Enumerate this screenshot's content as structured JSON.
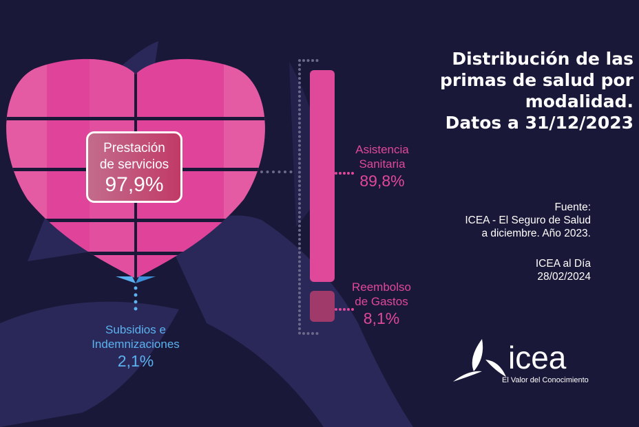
{
  "title_lines": [
    "Distribución de las",
    "primas de salud por",
    "modalidad.",
    "Datos a 31/12/2023"
  ],
  "source": {
    "label": "Fuente:",
    "lines": [
      "ICEA - El Seguro de Salud",
      "a diciembre. Año 2023."
    ]
  },
  "publication": {
    "name": "ICEA al Día",
    "date": "28/02/2024"
  },
  "logo": {
    "name": "icea",
    "tagline": "El Valor del Conocimiento"
  },
  "colors": {
    "background": "#1a1838",
    "heart": "#e0449a",
    "asistencia": "#e0489a",
    "reembolso": "#a03a6a",
    "subsidios": "#5bb2f0"
  },
  "chart_data": {
    "type": "infographic",
    "categories": [
      {
        "label_lines": [
          "Prestación",
          "de servicios"
        ],
        "value": 97.9,
        "display": "97,9%",
        "breakdown": [
          {
            "label_lines": [
              "Asistencia",
              "Sanitaria"
            ],
            "value": 89.8,
            "display": "89,8%"
          },
          {
            "label_lines": [
              "Reembolso",
              "de Gastos"
            ],
            "value": 8.1,
            "display": "8,1%"
          }
        ]
      },
      {
        "label_lines": [
          "Subsidios e",
          "Indemnizaciones"
        ],
        "value": 2.1,
        "display": "2,1%"
      }
    ],
    "unit": "%"
  }
}
